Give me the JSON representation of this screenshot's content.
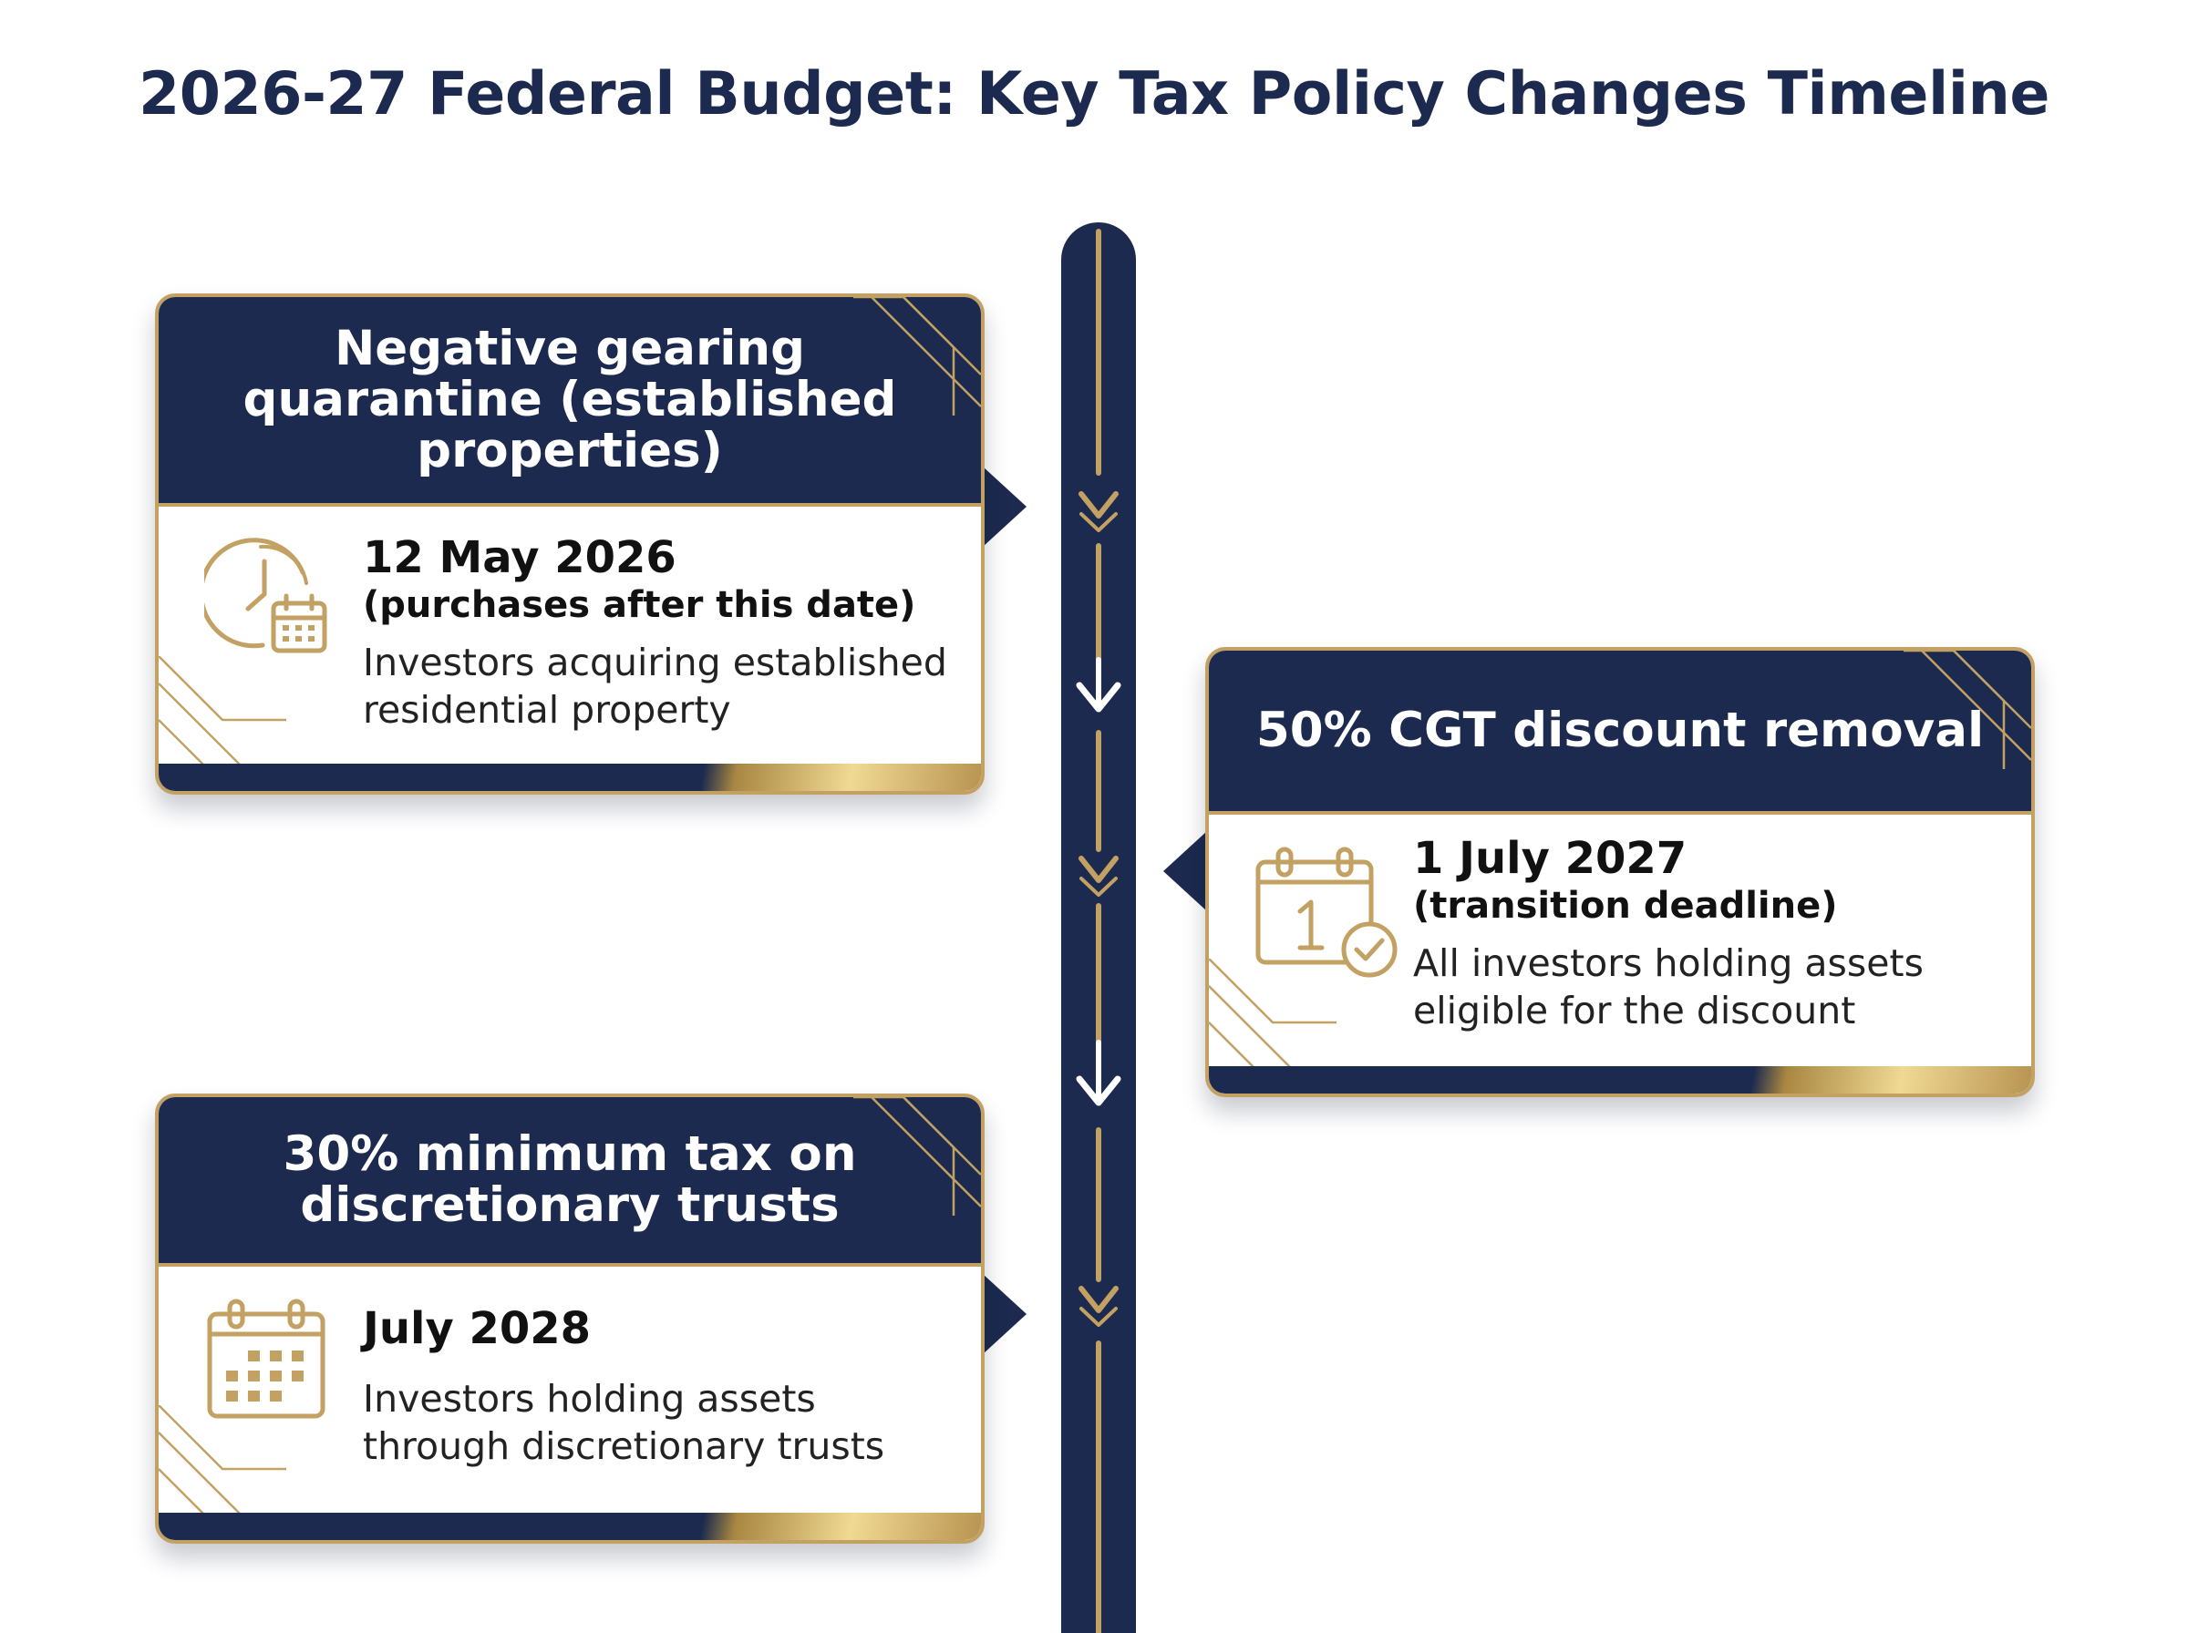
{
  "title": "2026-27 Federal Budget: Key Tax Policy Changes Timeline",
  "cards": [
    {
      "heading": "Negative gearing quarantine (established properties)",
      "date": "12 May 2026",
      "note": "(purchases after this date)",
      "description": "Investors acquiring established residential property",
      "icon": "clock-calendar-icon",
      "side": "left"
    },
    {
      "heading": "50% CGT discount removal",
      "date": "1 July 2027",
      "note": "(transition deadline)",
      "description": "All investors holding assets eligible for the discount",
      "icon": "calendar-check-icon",
      "side": "right"
    },
    {
      "heading": "30% minimum tax on discretionary trusts",
      "date": "July 2028",
      "note": "",
      "description": "Investors holding assets through discretionary trusts",
      "icon": "calendar-grid-icon",
      "side": "left"
    }
  ],
  "colors": {
    "navy": "#1b2a4e",
    "gold": "#c2a163",
    "gold_light": "#f0d993"
  }
}
